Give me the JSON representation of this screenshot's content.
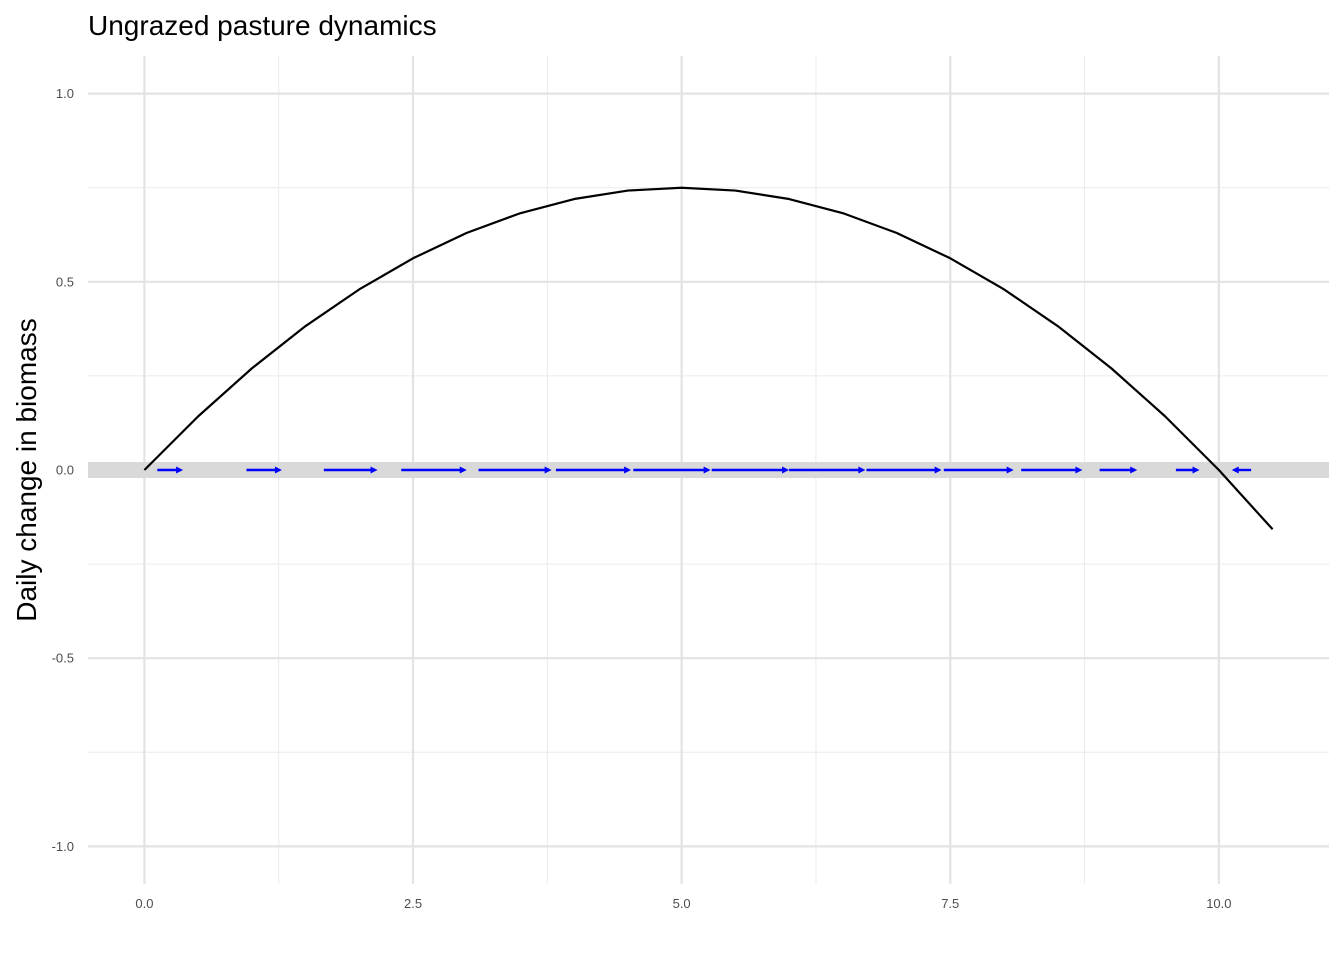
{
  "chart_data": {
    "type": "line",
    "title": "Ungrazed pasture dynamics",
    "xlabel": "",
    "ylabel": "Daily change in biomass",
    "xlim": [
      -0.525,
      11.025
    ],
    "ylim": [
      -1.1,
      1.1
    ],
    "x_ticks": [
      0.0,
      2.5,
      5.0,
      7.5,
      10.0
    ],
    "x_tick_labels": [
      "0.0",
      "2.5",
      "5.0",
      "7.5",
      "10.0"
    ],
    "y_ticks": [
      -1.0,
      -0.5,
      0.0,
      0.5,
      1.0
    ],
    "y_tick_labels": [
      "-1.0",
      "-0.5",
      "0.0",
      "0.5",
      "1.0"
    ],
    "grid": true,
    "series": [
      {
        "color": "#000000",
        "x": [
          0,
          0.5,
          1,
          1.5,
          2,
          2.5,
          3,
          3.5,
          4,
          4.5,
          5,
          5.5,
          6,
          6.5,
          7,
          7.5,
          8,
          8.5,
          9,
          9.5,
          10,
          10.5
        ],
        "y": [
          0,
          0.1425,
          0.27,
          0.3825,
          0.48,
          0.5625,
          0.63,
          0.6825,
          0.72,
          0.7425,
          0.75,
          0.7425,
          0.72,
          0.6825,
          0.63,
          0.5625,
          0.48,
          0.3825,
          0.27,
          0.1425,
          0,
          -0.1575
        ]
      }
    ],
    "zero_band": {
      "y": 0.0,
      "color": "#d9d9d9"
    },
    "flow_arrows": {
      "color": "#0000ff",
      "y": 0.0,
      "segments": [
        [
          0.12,
          0.36
        ],
        [
          0.95,
          1.28
        ],
        [
          1.67,
          2.17
        ],
        [
          2.39,
          3.0
        ],
        [
          3.11,
          3.79
        ],
        [
          3.83,
          4.53
        ],
        [
          4.55,
          5.27
        ],
        [
          5.28,
          6.0
        ],
        [
          6.0,
          6.71
        ],
        [
          6.72,
          7.42
        ],
        [
          7.44,
          8.09
        ],
        [
          8.16,
          8.73
        ],
        [
          8.89,
          9.24
        ],
        [
          9.6,
          9.82
        ],
        [
          10.3,
          10.12
        ]
      ]
    }
  }
}
